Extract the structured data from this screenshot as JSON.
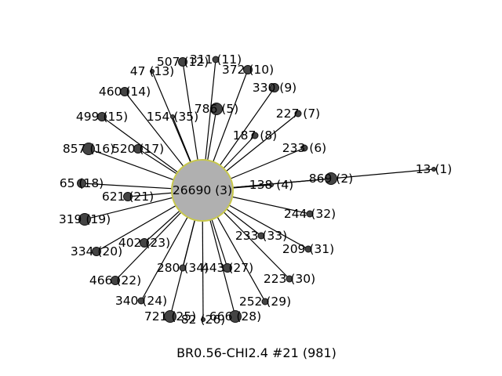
{
  "caption": "BR0.56-CHI2.4 #21 (981)",
  "center": {
    "label": "26690 (3)"
  },
  "nodes": [
    {
      "label": "13 (1)",
      "size": "tiny"
    },
    {
      "label": "869 (2)",
      "size": "large"
    },
    {
      "label": "138 (4)",
      "size": "tiny"
    },
    {
      "label": "786 (5)",
      "size": "large"
    },
    {
      "label": "233 (6)",
      "size": "small"
    },
    {
      "label": "227 (7)",
      "size": "small"
    },
    {
      "label": "187 (8)",
      "size": "small"
    },
    {
      "label": "330 (9)",
      "size": "medium"
    },
    {
      "label": "372 (10)",
      "size": "medium"
    },
    {
      "label": "311 (11)",
      "size": "small"
    },
    {
      "label": "507 (12)",
      "size": "medium"
    },
    {
      "label": "47 (13)",
      "size": "tiny"
    },
    {
      "label": "460 (14)",
      "size": "medium"
    },
    {
      "label": "499 (15)",
      "size": "medium"
    },
    {
      "label": "857 (16)",
      "size": "large"
    },
    {
      "label": "520 (17)",
      "size": "medium"
    },
    {
      "label": "65 (18)",
      "size": "medium"
    },
    {
      "label": "319 (19)",
      "size": "large"
    },
    {
      "label": "334 (20)",
      "size": "medium"
    },
    {
      "label": "621 (21)",
      "size": "medium"
    },
    {
      "label": "466 (22)",
      "size": "medium"
    },
    {
      "label": "402 (23)",
      "size": "medium"
    },
    {
      "label": "340 (24)",
      "size": "small"
    },
    {
      "label": "721 (25)",
      "size": "large"
    },
    {
      "label": "82 (26)",
      "size": "tiny"
    },
    {
      "label": "443 (27)",
      "size": "medium"
    },
    {
      "label": "666 (28)",
      "size": "large"
    },
    {
      "label": "252 (29)",
      "size": "small"
    },
    {
      "label": "223 (30)",
      "size": "small"
    },
    {
      "label": "209 (31)",
      "size": "small"
    },
    {
      "label": "244 (32)",
      "size": "small"
    },
    {
      "label": "233 (33)",
      "size": "small"
    },
    {
      "label": "280 (34)",
      "size": "small"
    },
    {
      "label": "154 (35)",
      "size": "tiny"
    }
  ]
}
